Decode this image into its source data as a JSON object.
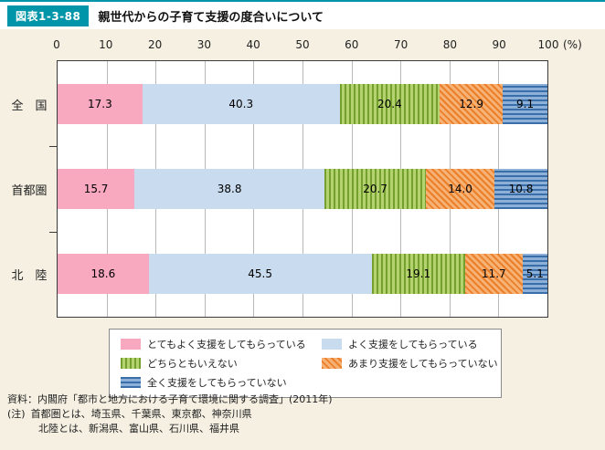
{
  "header": {
    "figure_label": "図表1-3-88",
    "title": "親世代からの子育て支援の度合いについて"
  },
  "axis": {
    "ticks": [
      "0",
      "10",
      "20",
      "30",
      "40",
      "50",
      "60",
      "70",
      "80",
      "90",
      "100"
    ],
    "unit": "(%)"
  },
  "chart_data": {
    "type": "bar",
    "orientation": "horizontal",
    "stacked": true,
    "title": "親世代からの子育て支援の度合いについて",
    "xlim": [
      0,
      100
    ],
    "grid": "vertical",
    "legend_position": "bottom",
    "categories": [
      "全　国",
      "首都圏",
      "北　陸"
    ],
    "series": [
      {
        "name": "とてもよく支援をしてもらっている",
        "values": [
          17.3,
          15.7,
          18.6
        ],
        "pattern": "solid",
        "color": "#f8a8bf",
        "color2": "#f8a8bf"
      },
      {
        "name": "よく支援をしてもらっている",
        "values": [
          40.3,
          38.8,
          45.5
        ],
        "pattern": "solid",
        "color": "#c9dbee",
        "color2": "#c9dbee"
      },
      {
        "name": "どちらともいえない",
        "values": [
          20.4,
          20.7,
          19.1
        ],
        "pattern": "vstripe",
        "color": "#b4d26f",
        "color2": "#74a12e"
      },
      {
        "name": "あまり支援をしてもらっていない",
        "values": [
          12.9,
          14.0,
          11.7
        ],
        "pattern": "dstripe",
        "color": "#f6b175",
        "color2": "#ec7f2a"
      },
      {
        "name": "全く支援をしてもらっていない",
        "values": [
          9.1,
          10.8,
          5.1
        ],
        "pattern": "hstripe",
        "color": "#8cb0d8",
        "color2": "#3a6ea8"
      }
    ]
  },
  "footer": {
    "source": "資料：内閣府「都市と地方における子育て環境に関する調査」(2011年)",
    "note_label": "(注)",
    "note1": "首都圏とは、埼玉県、千葉県、東京都、神奈川県",
    "note2": "北陸とは、新潟県、富山県、石川県、福井県"
  },
  "colors": {
    "accent_teal": "#0095a8",
    "page_background": "#f5f0e2"
  }
}
